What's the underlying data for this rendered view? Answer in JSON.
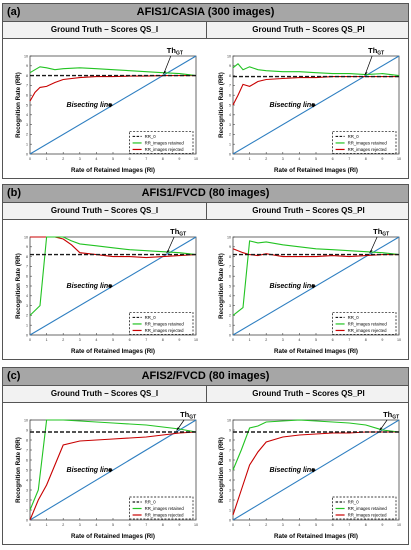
{
  "sections": [
    {
      "tag": "(a)",
      "title": "AFIS1/CASIA (300 images)",
      "panels": [
        {
          "subtitle": "Ground Truth – Scores QS_I"
        },
        {
          "subtitle": "Ground Truth – Scores QS_PI"
        }
      ]
    },
    {
      "tag": "(b)",
      "title": "AFIS1/FVCD (80 images)",
      "panels": [
        {
          "subtitle": "Ground Truth – Scores QS_I"
        },
        {
          "subtitle": "Ground Truth – Scores QS_PI"
        }
      ]
    },
    {
      "tag": "(c)",
      "title": "AFIS2/FVCD (80 images)",
      "panels": [
        {
          "subtitle": "Ground Truth – Scores QS_I"
        },
        {
          "subtitle": "Ground Truth – Scores QS_PI"
        }
      ]
    }
  ],
  "labels": {
    "ylabel": "Recognition Rate (RR)",
    "xlabel": "Rate of Retained Images (RI)",
    "bisect": "Bisecting line",
    "thgt_main": "Th",
    "thgt_sub": "GT"
  },
  "legend": [
    "RR_0",
    "RR_images retained",
    "RR_images rejected"
  ],
  "colors": {
    "rr0": "#1a1a1a",
    "retained": "#22c322",
    "rejected": "#c80000",
    "bisect": "#2f7fc1",
    "darkred": "#8b2a0a",
    "olive": "#8a7a2a"
  },
  "chart_data": [
    {
      "type": "line",
      "title": "AFIS1/CASIA (300 images) – Ground Truth – Scores QS_I",
      "xlabel": "Rate of Retained Images (RI)",
      "ylabel": "Recognition Rate (RR)",
      "xlim": [
        0,
        10
      ],
      "ylim": [
        0,
        10
      ],
      "x": [
        0,
        0.3,
        0.6,
        1,
        1.5,
        2,
        3,
        4,
        5,
        6,
        7,
        8,
        9,
        10
      ],
      "series": [
        {
          "name": "RR_0",
          "values": [
            8.0,
            8.0,
            8.0,
            8.0,
            8.0,
            8.0,
            8.0,
            8.0,
            8.0,
            8.0,
            8.0,
            8.0,
            8.0,
            8.0
          ]
        },
        {
          "name": "RR_images retained",
          "values": [
            8.3,
            8.6,
            8.9,
            8.8,
            8.6,
            8.7,
            8.8,
            8.7,
            8.6,
            8.5,
            8.4,
            8.3,
            8.2,
            8.0
          ]
        },
        {
          "name": "RR_images rejected",
          "values": [
            5.4,
            6.3,
            6.8,
            6.9,
            7.3,
            7.6,
            7.8,
            7.9,
            7.9,
            7.95,
            7.95,
            8.0,
            8.0,
            8.0
          ]
        }
      ],
      "reference": {
        "name": "Bisecting line",
        "from": [
          0,
          0
        ],
        "to": [
          10,
          10
        ]
      },
      "annotation_x": 8.0
    },
    {
      "type": "line",
      "title": "AFIS1/CASIA (300 images) – Ground Truth – Scores QS_PI",
      "xlabel": "Rate of Retained Images (RI)",
      "ylabel": "Recognition Rate (RR)",
      "xlim": [
        0,
        10
      ],
      "ylim": [
        0,
        10
      ],
      "x": [
        0,
        0.3,
        0.6,
        1,
        1.5,
        2,
        3,
        4,
        5,
        6,
        7,
        8,
        9,
        10
      ],
      "series": [
        {
          "name": "RR_0",
          "values": [
            7.9,
            7.9,
            7.9,
            7.9,
            7.9,
            7.9,
            7.9,
            7.9,
            7.9,
            7.9,
            7.9,
            7.9,
            7.9,
            7.9
          ]
        },
        {
          "name": "RR_images retained",
          "values": [
            8.8,
            9.2,
            8.6,
            8.9,
            8.6,
            8.5,
            8.4,
            8.4,
            8.3,
            8.2,
            8.2,
            8.1,
            8.2,
            8.0
          ]
        },
        {
          "name": "RR_images rejected",
          "values": [
            5.0,
            6.0,
            7.1,
            6.9,
            7.4,
            7.6,
            7.7,
            7.8,
            7.8,
            7.9,
            7.9,
            7.9,
            7.9,
            7.9
          ]
        }
      ],
      "reference": {
        "name": "Bisecting line",
        "from": [
          0,
          0
        ],
        "to": [
          10,
          10
        ]
      },
      "annotation_x": 7.9
    },
    {
      "type": "line",
      "title": "AFIS1/FVCD (80 images) – Ground Truth – Scores QS_I",
      "xlabel": "Rate of Retained Images (RI)",
      "ylabel": "Recognition Rate (RR)",
      "xlim": [
        0,
        10
      ],
      "ylim": [
        0,
        10
      ],
      "x": [
        0,
        0.6,
        1,
        1.5,
        2,
        2.5,
        3,
        4,
        5,
        6,
        7,
        8,
        9,
        10
      ],
      "series": [
        {
          "name": "RR_0",
          "values": [
            8.2,
            8.2,
            8.2,
            8.2,
            8.2,
            8.2,
            8.2,
            8.2,
            8.2,
            8.2,
            8.2,
            8.2,
            8.2,
            8.2
          ]
        },
        {
          "name": "RR_images retained",
          "values": [
            2.0,
            3.0,
            10.0,
            10.0,
            10.0,
            9.6,
            9.3,
            9.1,
            8.9,
            8.7,
            8.6,
            8.5,
            8.4,
            8.2
          ]
        },
        {
          "name": "RR_images rejected",
          "values": [
            10.0,
            10.0,
            10.0,
            10.0,
            9.8,
            9.2,
            8.4,
            8.2,
            8.0,
            8.0,
            7.9,
            8.0,
            8.1,
            8.2
          ]
        }
      ],
      "reference": {
        "name": "Bisecting line",
        "from": [
          0,
          0
        ],
        "to": [
          10,
          10
        ]
      },
      "annotation_x": 8.2
    },
    {
      "type": "line",
      "title": "AFIS1/FVCD (80 images) – Ground Truth – Scores QS_PI",
      "xlabel": "Rate of Retained Images (RI)",
      "ylabel": "Recognition Rate (RR)",
      "xlim": [
        0,
        10
      ],
      "ylim": [
        0,
        10
      ],
      "x": [
        0,
        0.6,
        1,
        1.5,
        2,
        3,
        4,
        5,
        6,
        7,
        8,
        9,
        10
      ],
      "series": [
        {
          "name": "RR_0",
          "values": [
            8.2,
            8.2,
            8.2,
            8.2,
            8.2,
            8.2,
            8.2,
            8.2,
            8.2,
            8.2,
            8.2,
            8.2,
            8.2
          ]
        },
        {
          "name": "RR_images retained",
          "values": [
            2.0,
            2.8,
            9.6,
            9.4,
            9.5,
            9.2,
            9.0,
            8.8,
            8.7,
            8.6,
            8.5,
            8.4,
            8.2
          ]
        },
        {
          "name": "RR_images rejected",
          "values": [
            8.8,
            8.4,
            8.2,
            8.1,
            8.3,
            8.0,
            8.0,
            8.0,
            8.1,
            8.0,
            8.1,
            8.2,
            8.2
          ]
        }
      ],
      "reference": {
        "name": "Bisecting line",
        "from": [
          0,
          0
        ],
        "to": [
          10,
          10
        ]
      },
      "annotation_x": 8.2
    },
    {
      "type": "line",
      "title": "AFIS2/FVCD (80 images) – Ground Truth – Scores QS_I",
      "xlabel": "Rate of Retained Images (RI)",
      "ylabel": "Recognition Rate (RR)",
      "xlim": [
        0,
        10
      ],
      "ylim": [
        0,
        10
      ],
      "x": [
        0,
        0.5,
        1,
        1.5,
        2,
        3,
        4,
        5,
        6,
        7,
        8,
        9,
        10
      ],
      "series": [
        {
          "name": "RR_0",
          "values": [
            8.8,
            8.8,
            8.8,
            8.8,
            8.8,
            8.8,
            8.8,
            8.8,
            8.8,
            8.8,
            8.8,
            8.8,
            8.8
          ]
        },
        {
          "name": "RR_images retained",
          "values": [
            1.0,
            3.0,
            10.0,
            10.0,
            10.0,
            9.9,
            9.8,
            9.7,
            9.6,
            9.5,
            9.3,
            9.1,
            8.8
          ]
        },
        {
          "name": "RR_images rejected",
          "values": [
            0.0,
            2.0,
            3.5,
            5.5,
            7.5,
            7.9,
            8.0,
            8.1,
            8.2,
            8.3,
            8.5,
            8.7,
            8.8
          ]
        }
      ],
      "reference": {
        "name": "Bisecting line",
        "from": [
          0,
          0
        ],
        "to": [
          10,
          10
        ]
      },
      "annotation_x": 8.8
    },
    {
      "type": "line",
      "title": "AFIS2/FVCD (80 images) – Ground Truth – Scores QS_PI",
      "xlabel": "Rate of Retained Images (RI)",
      "ylabel": "Recognition Rate (RR)",
      "xlim": [
        0,
        10
      ],
      "ylim": [
        0,
        10
      ],
      "x": [
        0,
        0.5,
        1,
        1.5,
        2,
        3,
        4,
        5,
        6,
        7,
        8,
        9,
        10
      ],
      "series": [
        {
          "name": "RR_0",
          "values": [
            8.8,
            8.8,
            8.8,
            8.8,
            8.8,
            8.8,
            8.8,
            8.8,
            8.8,
            8.8,
            8.8,
            8.8,
            8.8
          ]
        },
        {
          "name": "RR_images retained",
          "values": [
            5.0,
            7.0,
            9.2,
            9.4,
            9.8,
            9.9,
            10.0,
            9.9,
            9.8,
            9.7,
            9.5,
            9.0,
            8.8
          ]
        },
        {
          "name": "RR_images rejected",
          "values": [
            0.5,
            3.0,
            5.5,
            6.8,
            7.8,
            8.3,
            8.5,
            8.6,
            8.7,
            8.7,
            8.8,
            8.8,
            8.8
          ]
        }
      ],
      "reference": {
        "name": "Bisecting line",
        "from": [
          0,
          0
        ],
        "to": [
          10,
          10
        ]
      },
      "annotation_x": 8.8
    }
  ]
}
